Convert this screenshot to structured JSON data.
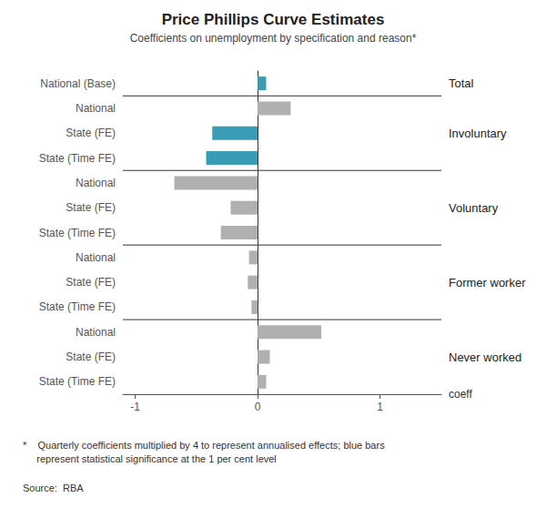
{
  "chart_data": {
    "type": "bar",
    "orientation": "horizontal",
    "title": "Price Phillips Curve Estimates",
    "subtitle": "Coefficients on unemployment by specification and reason*",
    "xlabel": "coeff",
    "footnote": "*    Quarterly coefficients multiplied by 4 to represent annualised effects; blue bars\n     represent statistical significance at the 1 per cent level",
    "source": "Source:  RBA",
    "categories": [
      "National (Base)",
      "National",
      "State (FE)",
      "State (Time FE)",
      "National",
      "State (FE)",
      "State (Time FE)",
      "National",
      "State (FE)",
      "State (Time FE)",
      "National",
      "State (FE)",
      "State (Time FE)"
    ],
    "groups": [
      "Total",
      "Involuntary",
      "Involuntary",
      "Involuntary",
      "Voluntary",
      "Voluntary",
      "Voluntary",
      "Former worker",
      "Former worker",
      "Former worker",
      "Never worked",
      "Never worked",
      "Never worked"
    ],
    "values": [
      0.07,
      0.27,
      -0.37,
      -0.42,
      -0.68,
      -0.22,
      -0.3,
      -0.07,
      -0.08,
      -0.05,
      0.52,
      0.1,
      0.07
    ],
    "colors": [
      "#3a9bb5",
      "#b0b0b0",
      "#3a9bb5",
      "#3a9bb5",
      "#b0b0b0",
      "#b0b0b0",
      "#b0b0b0",
      "#b0b0b0",
      "#b0b0b0",
      "#b0b0b0",
      "#b0b0b0",
      "#b0b0b0",
      "#b0b0b0"
    ],
    "xlim": [
      -1.1,
      1.5
    ],
    "xticks": [
      -1,
      0,
      1
    ],
    "grid": false
  }
}
